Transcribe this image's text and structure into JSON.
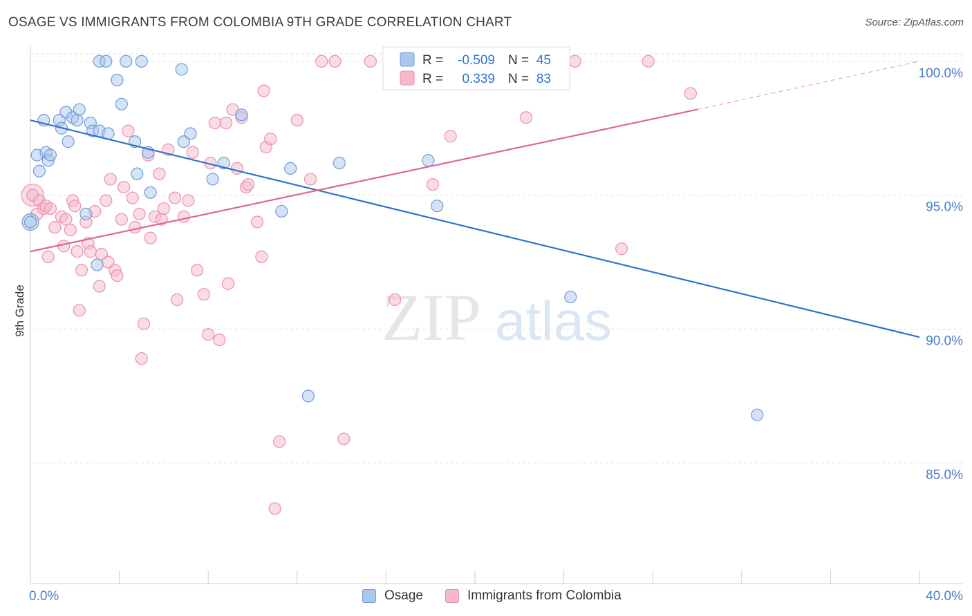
{
  "title": "OSAGE VS IMMIGRANTS FROM COLOMBIA 9TH GRADE CORRELATION CHART",
  "source": "Source: ZipAtlas.com",
  "watermark": {
    "zip": "ZIP",
    "atlas": "atlas"
  },
  "colors": {
    "osage_fill": "#a9c8ee",
    "osage_stroke": "#6f9bd8",
    "osage_line": "#2f72cc",
    "colombia_fill": "#f6b9cc",
    "colombia_stroke": "#ec8fad",
    "colombia_line": "#e0668f",
    "tick_label": "#4a7cc9",
    "grid": "#dddddd"
  },
  "legend_box": {
    "rows": [
      {
        "r_label": "R =",
        "r_value": "-0.509",
        "n_label": "N =",
        "n_value": "45"
      },
      {
        "r_label": "R =",
        "r_value": "0.339",
        "n_label": "N =",
        "n_value": "83"
      }
    ]
  },
  "legend_bottom": [
    "Osage",
    "Immigrants from Colombia"
  ],
  "chart_data": {
    "type": "scatter",
    "title": "OSAGE VS IMMIGRANTS FROM COLOMBIA 9TH GRADE CORRELATION CHART",
    "xlabel": "",
    "ylabel": "9th Grade",
    "xlim": [
      0,
      40
    ],
    "ylim": [
      80.5,
      101
    ],
    "x_tick_labels": [
      "0.0%",
      "40.0%"
    ],
    "y_ticks": [
      85,
      90,
      95,
      100
    ],
    "y_tick_labels": [
      "85.0%",
      "90.0%",
      "95.0%",
      "100.0%"
    ],
    "grid": true,
    "legend_position": "top-center",
    "series": [
      {
        "name": "Osage",
        "trend": {
          "x": [
            0,
            40
          ],
          "y": [
            97.8,
            89.7
          ]
        },
        "points": [
          [
            0.0,
            94.0
          ],
          [
            0.3,
            96.5
          ],
          [
            0.4,
            95.9
          ],
          [
            0.6,
            97.8
          ],
          [
            0.7,
            96.6
          ],
          [
            0.8,
            96.3
          ],
          [
            0.9,
            96.5
          ],
          [
            1.3,
            97.8
          ],
          [
            1.4,
            97.5
          ],
          [
            1.6,
            98.1
          ],
          [
            1.7,
            97.0
          ],
          [
            1.9,
            97.9
          ],
          [
            2.1,
            97.8
          ],
          [
            2.2,
            98.2
          ],
          [
            2.5,
            94.3
          ],
          [
            2.7,
            97.7
          ],
          [
            2.8,
            97.4
          ],
          [
            3.1,
            97.4
          ],
          [
            3.0,
            92.4
          ],
          [
            3.1,
            100.0
          ],
          [
            3.4,
            100.0
          ],
          [
            3.5,
            97.3
          ],
          [
            3.9,
            99.3
          ],
          [
            4.1,
            98.4
          ],
          [
            4.3,
            100.0
          ],
          [
            4.7,
            97.0
          ],
          [
            4.8,
            95.8
          ],
          [
            5.0,
            100.0
          ],
          [
            5.3,
            96.6
          ],
          [
            5.4,
            95.1
          ],
          [
            6.8,
            99.7
          ],
          [
            6.9,
            97.0
          ],
          [
            7.2,
            97.3
          ],
          [
            8.2,
            95.6
          ],
          [
            8.7,
            96.2
          ],
          [
            9.5,
            98.0
          ],
          [
            11.3,
            94.4
          ],
          [
            11.7,
            96.0
          ],
          [
            12.5,
            87.5
          ],
          [
            13.9,
            96.2
          ],
          [
            17.9,
            96.3
          ],
          [
            18.3,
            94.6
          ],
          [
            24.3,
            91.2
          ],
          [
            32.7,
            86.8
          ],
          [
            17.0,
            100.0
          ]
        ]
      },
      {
        "name": "Immigrants from Colombia",
        "trend": {
          "x": [
            0,
            30
          ],
          "y": [
            92.9,
            98.2
          ]
        },
        "trend_dashed": {
          "x": [
            30,
            40
          ],
          "y": [
            98.2,
            100.0
          ]
        },
        "points": [
          [
            0.1,
            95.0
          ],
          [
            0.3,
            94.3
          ],
          [
            0.4,
            94.8
          ],
          [
            0.6,
            94.5
          ],
          [
            0.7,
            94.6
          ],
          [
            0.8,
            92.7
          ],
          [
            0.9,
            94.5
          ],
          [
            1.1,
            93.8
          ],
          [
            1.4,
            94.2
          ],
          [
            1.5,
            93.1
          ],
          [
            1.6,
            94.1
          ],
          [
            1.8,
            93.7
          ],
          [
            1.9,
            94.8
          ],
          [
            2.0,
            94.6
          ],
          [
            2.1,
            92.9
          ],
          [
            2.2,
            90.7
          ],
          [
            2.3,
            92.2
          ],
          [
            2.5,
            94.0
          ],
          [
            2.6,
            93.2
          ],
          [
            2.7,
            92.9
          ],
          [
            2.9,
            94.4
          ],
          [
            3.1,
            91.6
          ],
          [
            3.2,
            92.8
          ],
          [
            3.4,
            94.8
          ],
          [
            3.5,
            92.5
          ],
          [
            3.6,
            95.6
          ],
          [
            3.8,
            92.2
          ],
          [
            3.9,
            92.0
          ],
          [
            4.1,
            94.1
          ],
          [
            4.2,
            95.3
          ],
          [
            4.4,
            97.4
          ],
          [
            4.6,
            94.9
          ],
          [
            4.7,
            93.8
          ],
          [
            4.9,
            94.3
          ],
          [
            5.0,
            88.9
          ],
          [
            5.1,
            90.2
          ],
          [
            5.3,
            96.5
          ],
          [
            5.4,
            93.4
          ],
          [
            5.6,
            94.2
          ],
          [
            5.8,
            95.8
          ],
          [
            5.9,
            94.1
          ],
          [
            6.0,
            94.5
          ],
          [
            6.2,
            96.7
          ],
          [
            6.5,
            94.9
          ],
          [
            6.6,
            91.1
          ],
          [
            6.9,
            94.2
          ],
          [
            7.1,
            94.8
          ],
          [
            7.3,
            96.6
          ],
          [
            7.5,
            92.2
          ],
          [
            7.8,
            91.3
          ],
          [
            8.0,
            89.8
          ],
          [
            8.1,
            96.2
          ],
          [
            8.3,
            97.7
          ],
          [
            8.5,
            89.6
          ],
          [
            8.8,
            97.7
          ],
          [
            8.9,
            91.7
          ],
          [
            9.1,
            98.2
          ],
          [
            9.3,
            96.0
          ],
          [
            9.5,
            97.9
          ],
          [
            9.7,
            95.3
          ],
          [
            9.8,
            95.4
          ],
          [
            10.2,
            94.0
          ],
          [
            10.4,
            92.7
          ],
          [
            10.5,
            98.9
          ],
          [
            10.6,
            96.8
          ],
          [
            10.8,
            97.1
          ],
          [
            11.0,
            83.3
          ],
          [
            11.2,
            85.8
          ],
          [
            12.0,
            97.8
          ],
          [
            12.6,
            95.6
          ],
          [
            13.1,
            100.0
          ],
          [
            13.7,
            100.0
          ],
          [
            14.1,
            85.9
          ],
          [
            15.3,
            100.0
          ],
          [
            16.4,
            91.1
          ],
          [
            16.9,
            100.0
          ],
          [
            18.1,
            95.4
          ],
          [
            18.9,
            97.2
          ],
          [
            20.9,
            100.0
          ],
          [
            22.3,
            97.9
          ],
          [
            24.5,
            100.0
          ],
          [
            26.6,
            93.0
          ],
          [
            27.8,
            100.0
          ],
          [
            29.7,
            98.8
          ]
        ]
      }
    ]
  }
}
